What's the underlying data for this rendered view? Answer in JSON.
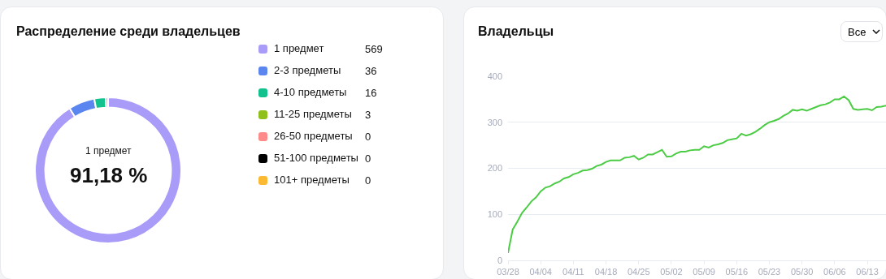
{
  "chart_data": [
    {
      "type": "donut",
      "title": "Распределение среди владельцев",
      "categories": [
        "1 предмет",
        "2-3 предметы",
        "4-10 предметы",
        "11-25 предметы",
        "26-50 предметы",
        "51-100 предметы",
        "101+ предметы"
      ],
      "values": [
        569,
        36,
        16,
        3,
        0,
        0,
        0
      ],
      "colors": [
        "#a99cf9",
        "#5b86ef",
        "#12c28e",
        "#8fc01a",
        "#ff8a8a",
        "#000000",
        "#fbb934"
      ],
      "annotations": [
        "1 предмет",
        "91,18 %"
      ],
      "legend": "right",
      "value_labels": [
        "569",
        "36",
        "16",
        "3",
        "0",
        "0",
        "0"
      ]
    },
    {
      "type": "line",
      "title": "Владельцы",
      "annotations": [
        "Все"
      ],
      "x": [
        "--03-28",
        "--03-29",
        "--03-30",
        "--03-31",
        "--04-01",
        "--04-02",
        "--04-03",
        "--04-04",
        "--04-05",
        "--04-06",
        "--04-07",
        "--04-08",
        "--04-09",
        "--04-10",
        "--04-11",
        "--04-12",
        "--04-13",
        "--04-14",
        "--04-15",
        "--04-16",
        "--04-17",
        "--04-18",
        "--04-19",
        "--04-20",
        "--04-21",
        "--04-22",
        "--04-23",
        "--04-24",
        "--04-25",
        "--04-26",
        "--04-27",
        "--04-28",
        "--04-29",
        "--04-30",
        "--05-01",
        "--05-02",
        "--05-03",
        "--05-04",
        "--05-05",
        "--05-06",
        "--05-07",
        "--05-08",
        "--05-09",
        "--05-10",
        "--05-11",
        "--05-12",
        "--05-13",
        "--05-14",
        "--05-15",
        "--05-16",
        "--05-17",
        "--05-18",
        "--05-19",
        "--05-20",
        "--05-21",
        "--05-22",
        "--05-23",
        "--05-24",
        "--05-25",
        "--05-26",
        "--05-27",
        "--05-28",
        "--05-29",
        "--05-30",
        "--05-31",
        "--06-01",
        "--06-02",
        "--06-03",
        "--06-04",
        "--06-05",
        "--06-06",
        "--06-07",
        "--06-08",
        "--06-09",
        "--06-10",
        "--06-11",
        "--06-12",
        "--06-13",
        "--06-14",
        "--06-15",
        "--06-16",
        "--06-17"
      ],
      "series": [
        {
          "color": "#4ccc45",
          "values": [
            16,
            67,
            84,
            103,
            115,
            128,
            137,
            150,
            158,
            161,
            167,
            171,
            178,
            181,
            187,
            190,
            195,
            196,
            199,
            205,
            208,
            214,
            217,
            217,
            217,
            223,
            224,
            227,
            219,
            223,
            230,
            230,
            235,
            240,
            225,
            226,
            232,
            236,
            236,
            239,
            240,
            240,
            248,
            245,
            250,
            252,
            255,
            261,
            263,
            265,
            275,
            271,
            274,
            279,
            286,
            294,
            300,
            303,
            307,
            314,
            319,
            327,
            325,
            328,
            325,
            329,
            333,
            337,
            339,
            343,
            350,
            350,
            356,
            348,
            329,
            327,
            328,
            329,
            326,
            333,
            334,
            336
          ]
        }
      ],
      "xlim": [
        "--03-28",
        "--06-17"
      ],
      "xticks": [
        {
          "value": "--03-28",
          "label": "03/28"
        },
        {
          "value": "--04-04",
          "label": "04/04"
        },
        {
          "value": "--04-11",
          "label": "04/11"
        },
        {
          "value": "--04-18",
          "label": "04/18"
        },
        {
          "value": "--04-25",
          "label": "04/25"
        },
        {
          "value": "--05-02",
          "label": "05/02"
        },
        {
          "value": "--05-09",
          "label": "05/09"
        },
        {
          "value": "--05-16",
          "label": "05/16"
        },
        {
          "value": "--05-23",
          "label": "05/23"
        },
        {
          "value": "--05-30",
          "label": "05/30"
        },
        {
          "value": "--06-06",
          "label": "06/06"
        },
        {
          "value": "--06-13",
          "label": "06/13"
        }
      ],
      "ylim": [
        0,
        400
      ],
      "yticks": [
        0,
        100,
        200,
        300,
        400
      ],
      "grid": "y"
    }
  ]
}
